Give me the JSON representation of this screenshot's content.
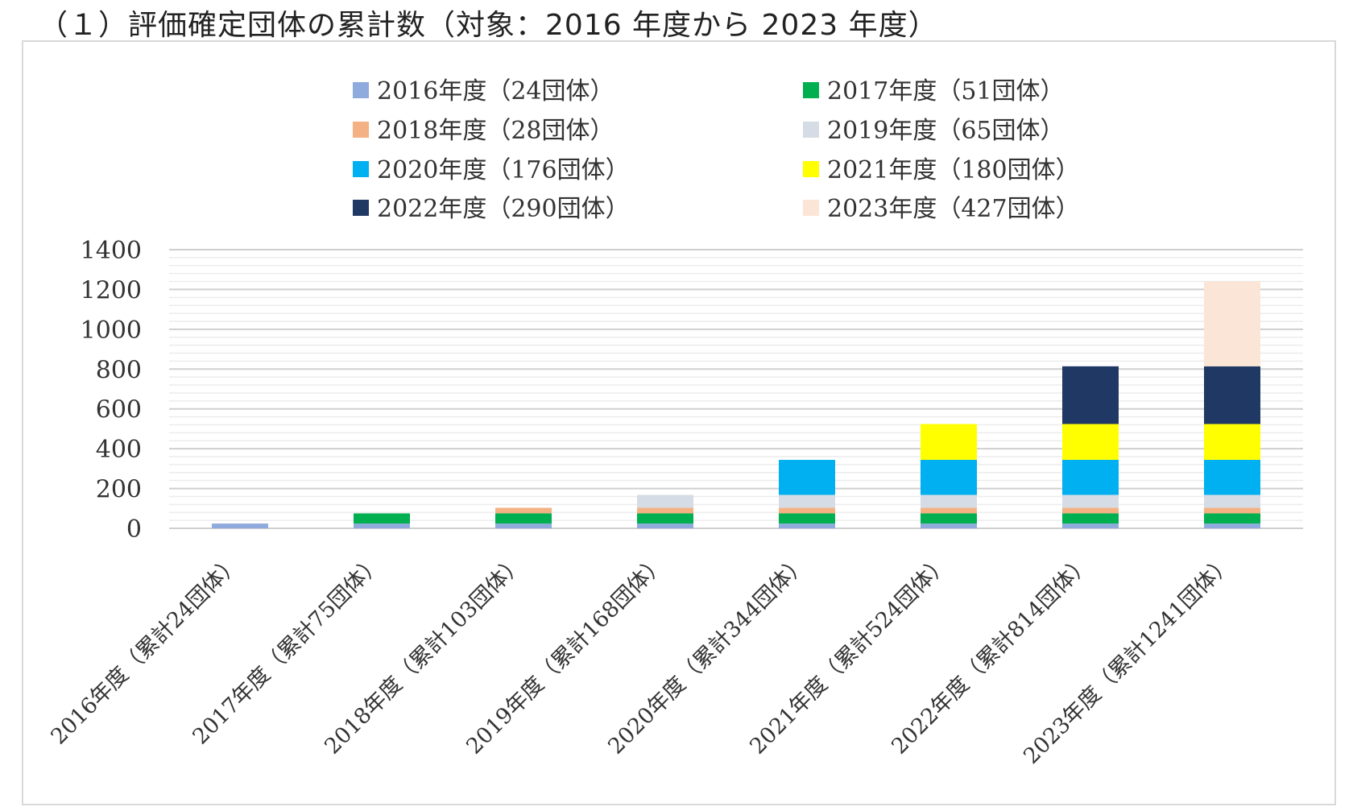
{
  "page": {
    "title": "（１）評価確定団体の累計数（対象：2016 年度から 2023 年度）"
  },
  "chart_data": {
    "type": "bar",
    "stacked": true,
    "title": "",
    "xlabel": "",
    "ylabel": "",
    "ylim": [
      0,
      1400
    ],
    "yticks": [
      0,
      200,
      400,
      600,
      800,
      1000,
      1200,
      1400
    ],
    "grid": true,
    "legend_position": "top",
    "categories": [
      "2016年度（累計24団体）",
      "2017年度（累計75団体）",
      "2018年度（累計103団体）",
      "2019年度（累計168団体）",
      "2020年度（累計344団体）",
      "2021年度（累計524団体）",
      "2022年度（累計814団体）",
      "2023年度（累計1241団体）"
    ],
    "series": [
      {
        "name": "2016年度（24団体）",
        "color": "#8FAADC",
        "values": [
          24,
          24,
          24,
          24,
          24,
          24,
          24,
          24
        ]
      },
      {
        "name": "2017年度（51団体）",
        "color": "#00B050",
        "values": [
          0,
          51,
          51,
          51,
          51,
          51,
          51,
          51
        ]
      },
      {
        "name": "2018年度（28団体）",
        "color": "#F4B183",
        "values": [
          0,
          0,
          28,
          28,
          28,
          28,
          28,
          28
        ]
      },
      {
        "name": "2019年度（65団体）",
        "color": "#D6DCE5",
        "values": [
          0,
          0,
          0,
          65,
          65,
          65,
          65,
          65
        ]
      },
      {
        "name": "2020年度（176団体）",
        "color": "#00B0F0",
        "values": [
          0,
          0,
          0,
          0,
          176,
          176,
          176,
          176
        ]
      },
      {
        "name": "2021年度（180団体）",
        "color": "#FFFF00",
        "values": [
          0,
          0,
          0,
          0,
          0,
          180,
          180,
          180
        ]
      },
      {
        "name": "2022年度（290団体）",
        "color": "#203864",
        "values": [
          0,
          0,
          0,
          0,
          0,
          0,
          290,
          290
        ]
      },
      {
        "name": "2023年度（427団体）",
        "color": "#FBE5D6",
        "values": [
          0,
          0,
          0,
          0,
          0,
          0,
          0,
          427
        ]
      }
    ]
  }
}
